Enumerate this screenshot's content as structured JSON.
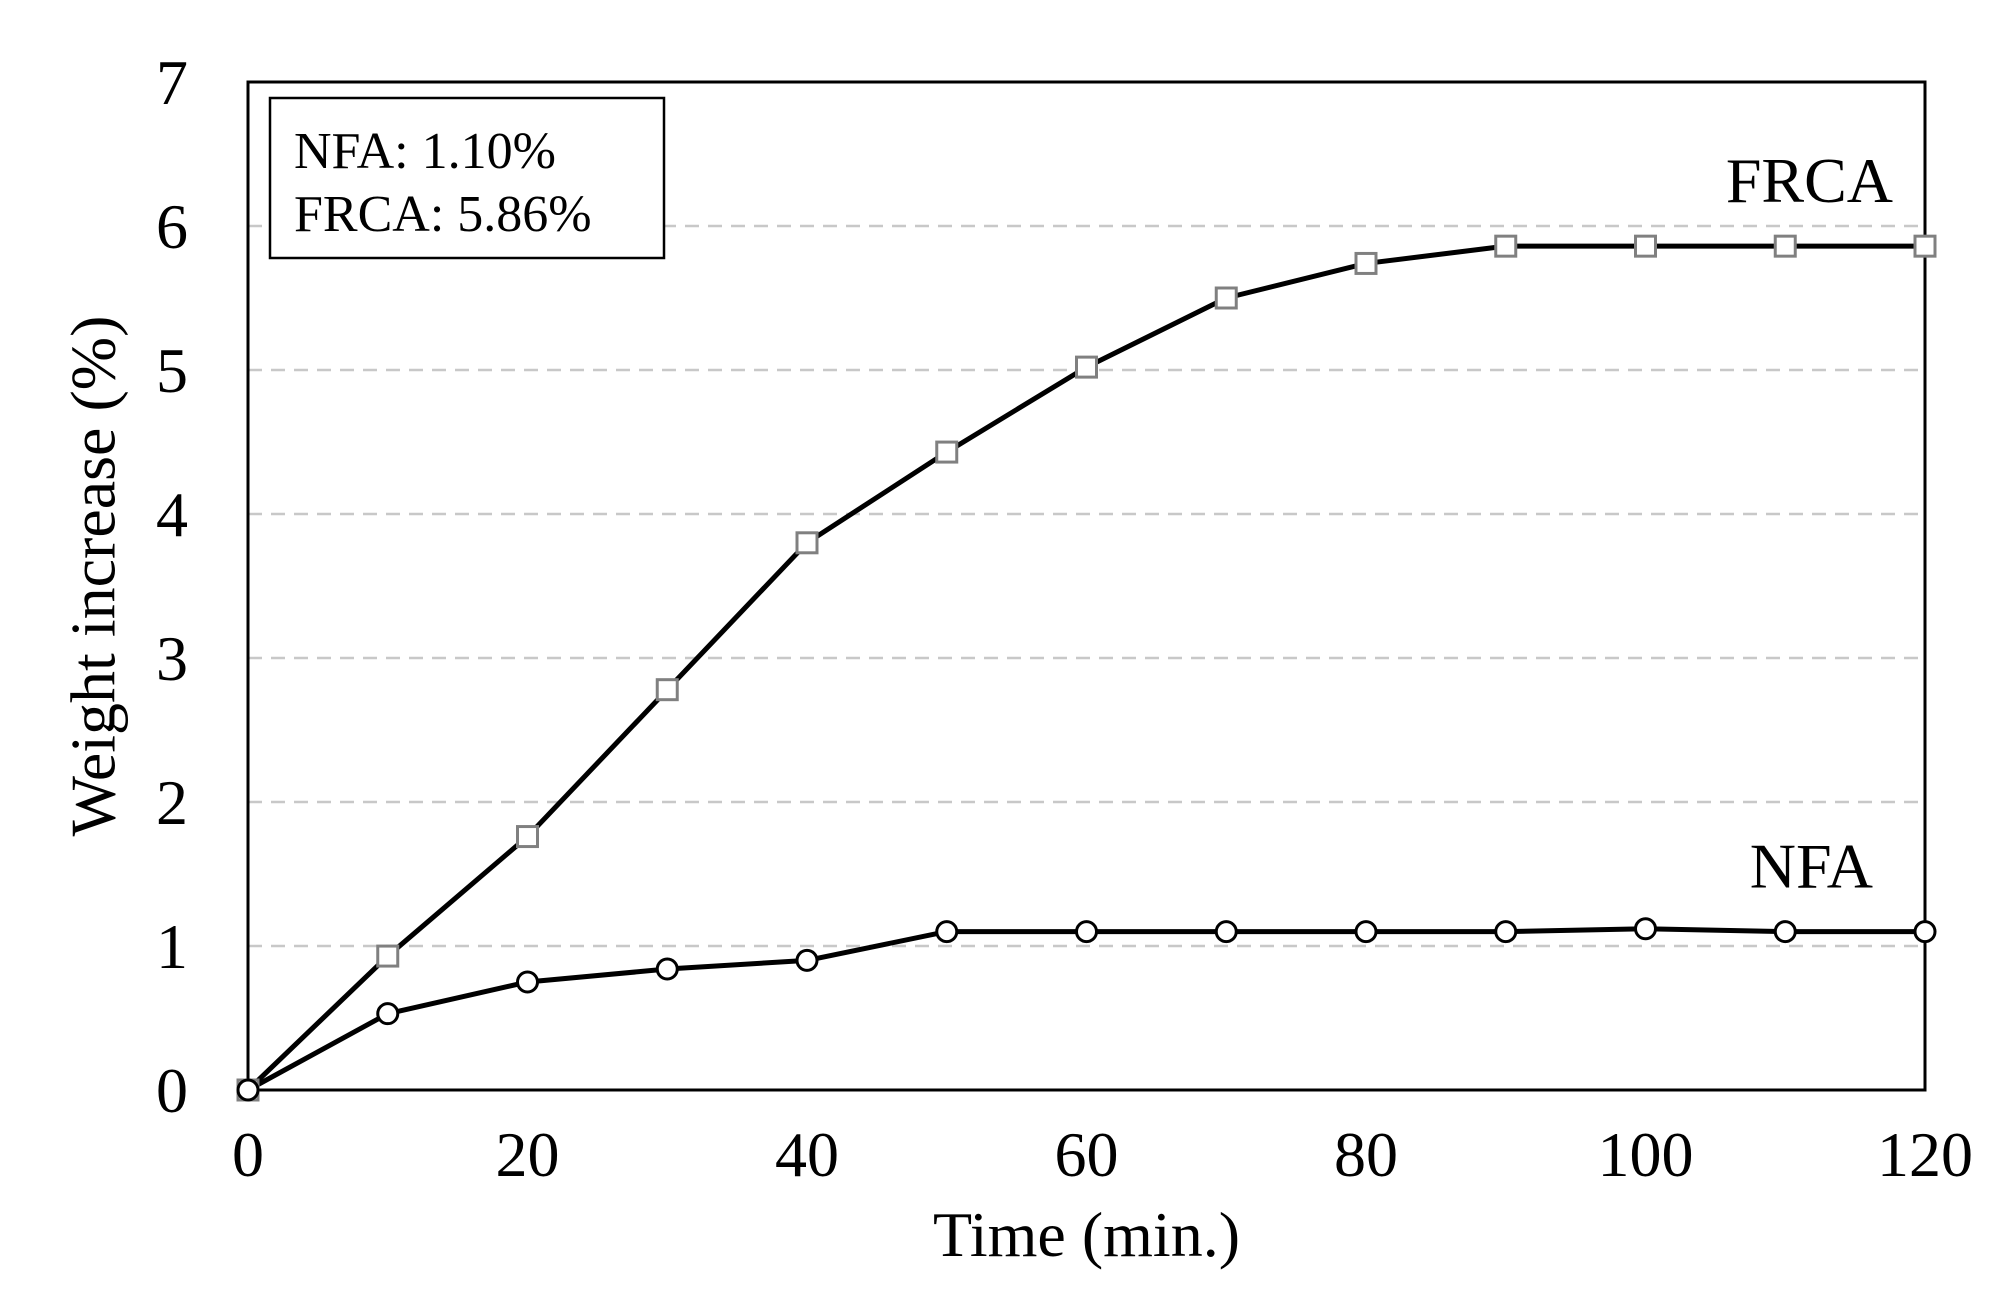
{
  "chart_data": {
    "type": "line",
    "title": "",
    "xlabel": "Time (min.)",
    "ylabel": "Weight increase  (%)",
    "xlim": [
      0,
      120
    ],
    "ylim": [
      0,
      7
    ],
    "x_ticks": [
      "0",
      "20",
      "40",
      "60",
      "80",
      "100",
      "120"
    ],
    "y_ticks": [
      "0",
      "1",
      "2",
      "3",
      "4",
      "5",
      "6",
      "7"
    ],
    "grid": "horizontal dashed",
    "x": [
      0,
      10,
      20,
      30,
      40,
      50,
      60,
      70,
      80,
      90,
      100,
      110,
      120
    ],
    "series": [
      {
        "name": "FRCA",
        "label": "FRCA",
        "marker": "square",
        "values": [
          0,
          0.93,
          1.76,
          2.78,
          3.8,
          4.43,
          5.02,
          5.5,
          5.74,
          5.86,
          5.86,
          5.86,
          5.86
        ]
      },
      {
        "name": "NFA",
        "label": "NFA",
        "marker": "circle",
        "values": [
          0,
          0.53,
          0.75,
          0.84,
          0.9,
          1.1,
          1.1,
          1.1,
          1.1,
          1.1,
          1.12,
          1.1,
          1.1
        ]
      }
    ],
    "annotation_box": {
      "lines": [
        "NFA: 1.10%",
        "FRCA: 5.86%"
      ],
      "placement": "top-left"
    },
    "colors": {
      "line": "#000000",
      "square_marker": "#808080",
      "grid": "#c8c8c8"
    }
  }
}
